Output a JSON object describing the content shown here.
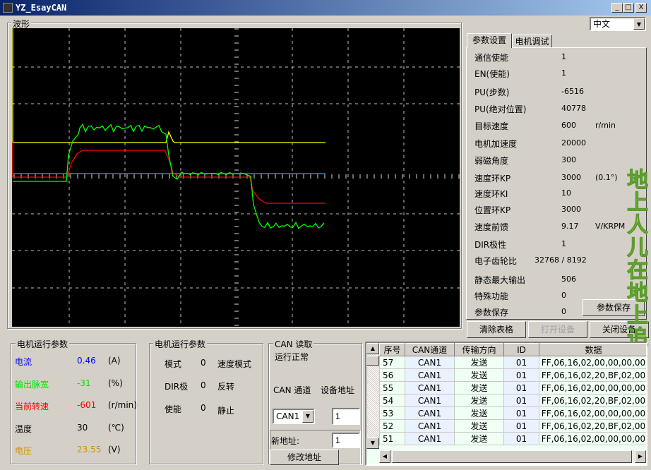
{
  "window": {
    "title": "YZ_EsayCAN",
    "minimize": "_",
    "maximize": "□",
    "close": "X"
  },
  "language": {
    "selected": "中文"
  },
  "waveform": {
    "label": "波形",
    "colors": {
      "yellow": "#ffff00",
      "red": "#ff0000",
      "green": "#00ff00",
      "blue": "#3399ff",
      "grid": "#c0c0c0",
      "background": "#000000"
    }
  },
  "tabs": [
    {
      "label": "参数设置",
      "active": true
    },
    {
      "label": "电机调试",
      "active": false
    }
  ],
  "params": [
    {
      "label": "通信使能",
      "value": "1",
      "unit": ""
    },
    {
      "label": "EN(使能)",
      "value": "1",
      "unit": ""
    },
    {
      "label": "PU(步数)",
      "value": "-6516",
      "unit": ""
    },
    {
      "label": "PU(绝对位置)",
      "value": "40778",
      "unit": ""
    },
    {
      "label": "目标速度",
      "value": "600",
      "unit": "r/min"
    },
    {
      "label": "电机加速度",
      "value": "20000",
      "unit": ""
    },
    {
      "label": "弱磁角度",
      "value": "300",
      "unit": ""
    },
    {
      "label": "速度环KP",
      "value": "3000",
      "unit": "(0.1°)"
    },
    {
      "label": "速度环KI",
      "value": "10",
      "unit": ""
    },
    {
      "label": "位置环KP",
      "value": "3000",
      "unit": ""
    },
    {
      "label": "速度前馈",
      "value": "9.17",
      "unit": "V/KRPM"
    },
    {
      "label": "DIR极性",
      "value": "1",
      "unit": ""
    },
    {
      "label": "电子齿轮比",
      "value": "32768  /  8192",
      "unit": ""
    },
    {
      "label": "静态最大输出",
      "value": "506",
      "unit": ""
    },
    {
      "label": "特殊功能",
      "value": "0",
      "unit": ""
    },
    {
      "label": "参数保存",
      "value": "0",
      "unit": ""
    }
  ],
  "buttons": {
    "save_params": "参数保存",
    "clear_table": "清除表格",
    "open_device": "打开设备",
    "close_device": "关闭设备",
    "modify_address": "修改地址"
  },
  "watermark": "地上人儿在地上追",
  "motor_run": {
    "title": "电机运行参数",
    "rows": [
      {
        "label": "电流",
        "value": "0.46",
        "unit": "(A)",
        "color": "#0000ff"
      },
      {
        "label": "输出脉宽",
        "value": "-31",
        "unit": "(%)",
        "color": "#00e000"
      },
      {
        "label": "当前转速",
        "value": "-601",
        "unit": "(r/min)",
        "color": "#ff0000"
      },
      {
        "label": "温度",
        "value": "30",
        "unit": "(℃)",
        "color": "#000000"
      },
      {
        "label": "电压",
        "value": "23.55",
        "unit": "(V)",
        "color": "#d09000"
      }
    ]
  },
  "motor_state": {
    "title": "电机运行参数",
    "rows": [
      {
        "label": "模式",
        "value": "0",
        "desc": "速度模式"
      },
      {
        "label": "DIR极",
        "value": "0",
        "desc": "反转"
      },
      {
        "label": "使能",
        "value": "0",
        "desc": "静止"
      }
    ]
  },
  "can": {
    "title": "CAN 读取",
    "status": "运行正常",
    "channel_label": "CAN 通道",
    "address_label": "设备地址",
    "channel": "CAN1",
    "address": "1",
    "new_address_label": "新地址:",
    "new_address": "1"
  },
  "log": {
    "headers": [
      "序号",
      "CAN通道",
      "传输方向",
      "ID",
      "数据"
    ],
    "rows": [
      [
        "57",
        "CAN1",
        "发送",
        "01",
        "FF,06,16,02,00,00,00,00"
      ],
      [
        "56",
        "CAN1",
        "发送",
        "01",
        "FF,06,16,02,20,BF,02,00"
      ],
      [
        "55",
        "CAN1",
        "发送",
        "01",
        "FF,06,16,02,00,00,00,00"
      ],
      [
        "54",
        "CAN1",
        "发送",
        "01",
        "FF,06,16,02,20,BF,02,00"
      ],
      [
        "53",
        "CAN1",
        "发送",
        "01",
        "FF,06,16,02,00,00,00,00"
      ],
      [
        "52",
        "CAN1",
        "发送",
        "01",
        "FF,06,16,02,20,BF,02,00"
      ],
      [
        "51",
        "CAN1",
        "发送",
        "01",
        "FF,06,16,02,00,00,00,00"
      ]
    ]
  }
}
